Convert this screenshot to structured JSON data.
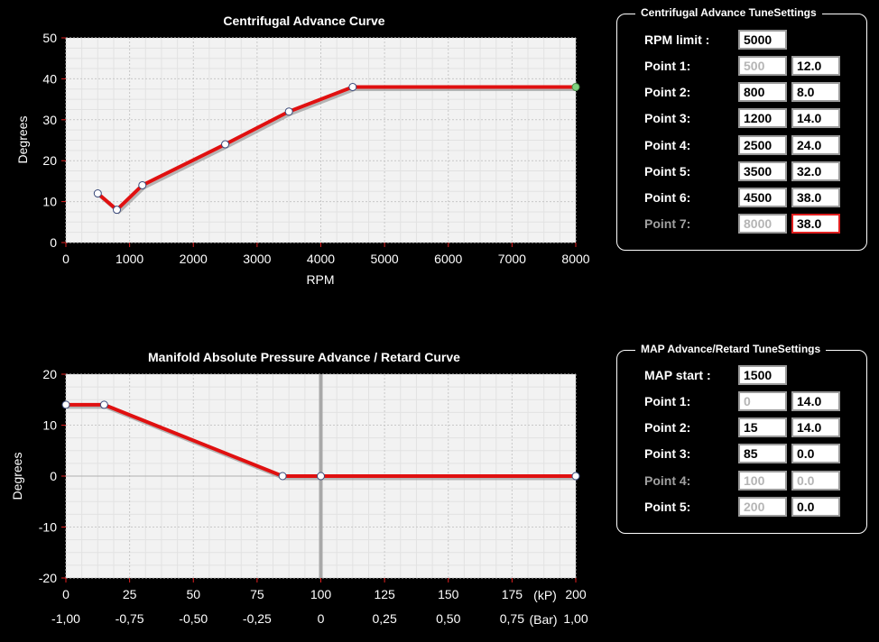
{
  "colors": {
    "curve": "#e01010",
    "shadow": "#9a9a9a",
    "plot_bg": "#f2f2f2",
    "grid": "#c8c8c8",
    "axis_tick": "#e02020",
    "last_point": "#7fd07f"
  },
  "chart_data": [
    {
      "type": "line",
      "title": "Centrifugal Advance Curve",
      "xlabel": "RPM",
      "ylabel": "Degrees",
      "xlim": [
        0,
        8000
      ],
      "ylim": [
        0,
        50
      ],
      "x_ticks": [
        0,
        1000,
        2000,
        3000,
        4000,
        5000,
        6000,
        7000,
        8000
      ],
      "y_ticks": [
        0,
        10,
        20,
        30,
        40,
        50
      ],
      "grid": true,
      "series": [
        {
          "points": [
            [
              500,
              12
            ],
            [
              800,
              8
            ],
            [
              1200,
              14
            ],
            [
              2500,
              24
            ],
            [
              3500,
              32
            ],
            [
              4500,
              38
            ],
            [
              8000,
              38
            ]
          ]
        }
      ]
    },
    {
      "type": "line",
      "title": "Manifold Absolute Pressure Advance / Retard Curve",
      "xlabel": "",
      "ylabel": "Degrees",
      "xlim": [
        0,
        200
      ],
      "ylim": [
        -20,
        20
      ],
      "x_ticks": [
        0,
        25,
        50,
        75,
        100,
        125,
        150,
        175,
        200
      ],
      "x_ticks_bar": [
        "-1,00",
        "-0,75",
        "-0,50",
        "-0,25",
        "0",
        "0,25",
        "0,50",
        "0,75",
        "1,00"
      ],
      "x_unit_kp": "(kP)",
      "x_unit_bar": "(Bar)",
      "y_ticks": [
        -20,
        -10,
        0,
        10,
        20
      ],
      "grid": true,
      "reference_line_x": 100,
      "series": [
        {
          "points": [
            [
              0,
              14
            ],
            [
              15,
              14
            ],
            [
              85,
              0
            ],
            [
              100,
              0
            ],
            [
              200,
              0
            ]
          ]
        }
      ]
    }
  ],
  "centrifugal_settings": {
    "title": "Centrifugal Advance TuneSettings",
    "rpm_limit_label": "RPM limit :",
    "rpm_limit_value": "5000",
    "points": [
      {
        "label": "Point 1:",
        "rpm": "500",
        "deg": "12.0"
      },
      {
        "label": "Point 2:",
        "rpm": "800",
        "deg": "8.0"
      },
      {
        "label": "Point 3:",
        "rpm": "1200",
        "deg": "14.0"
      },
      {
        "label": "Point 4:",
        "rpm": "2500",
        "deg": "24.0"
      },
      {
        "label": "Point 5:",
        "rpm": "3500",
        "deg": "32.0"
      },
      {
        "label": "Point 6:",
        "rpm": "4500",
        "deg": "38.0"
      },
      {
        "label": "Point 7:",
        "rpm": "8000",
        "deg": "38.0"
      }
    ]
  },
  "map_settings": {
    "title": "MAP Advance/Retard TuneSettings",
    "map_start_label": "MAP start :",
    "map_start_value": "1500",
    "points": [
      {
        "label": "Point 1:",
        "kp": "0",
        "deg": "14.0"
      },
      {
        "label": "Point 2:",
        "kp": "15",
        "deg": "14.0"
      },
      {
        "label": "Point 3:",
        "kp": "85",
        "deg": "0.0"
      },
      {
        "label": "Point 4:",
        "kp": "100",
        "deg": "0.0"
      },
      {
        "label": "Point 5:",
        "kp": "200",
        "deg": "0.0"
      }
    ]
  }
}
